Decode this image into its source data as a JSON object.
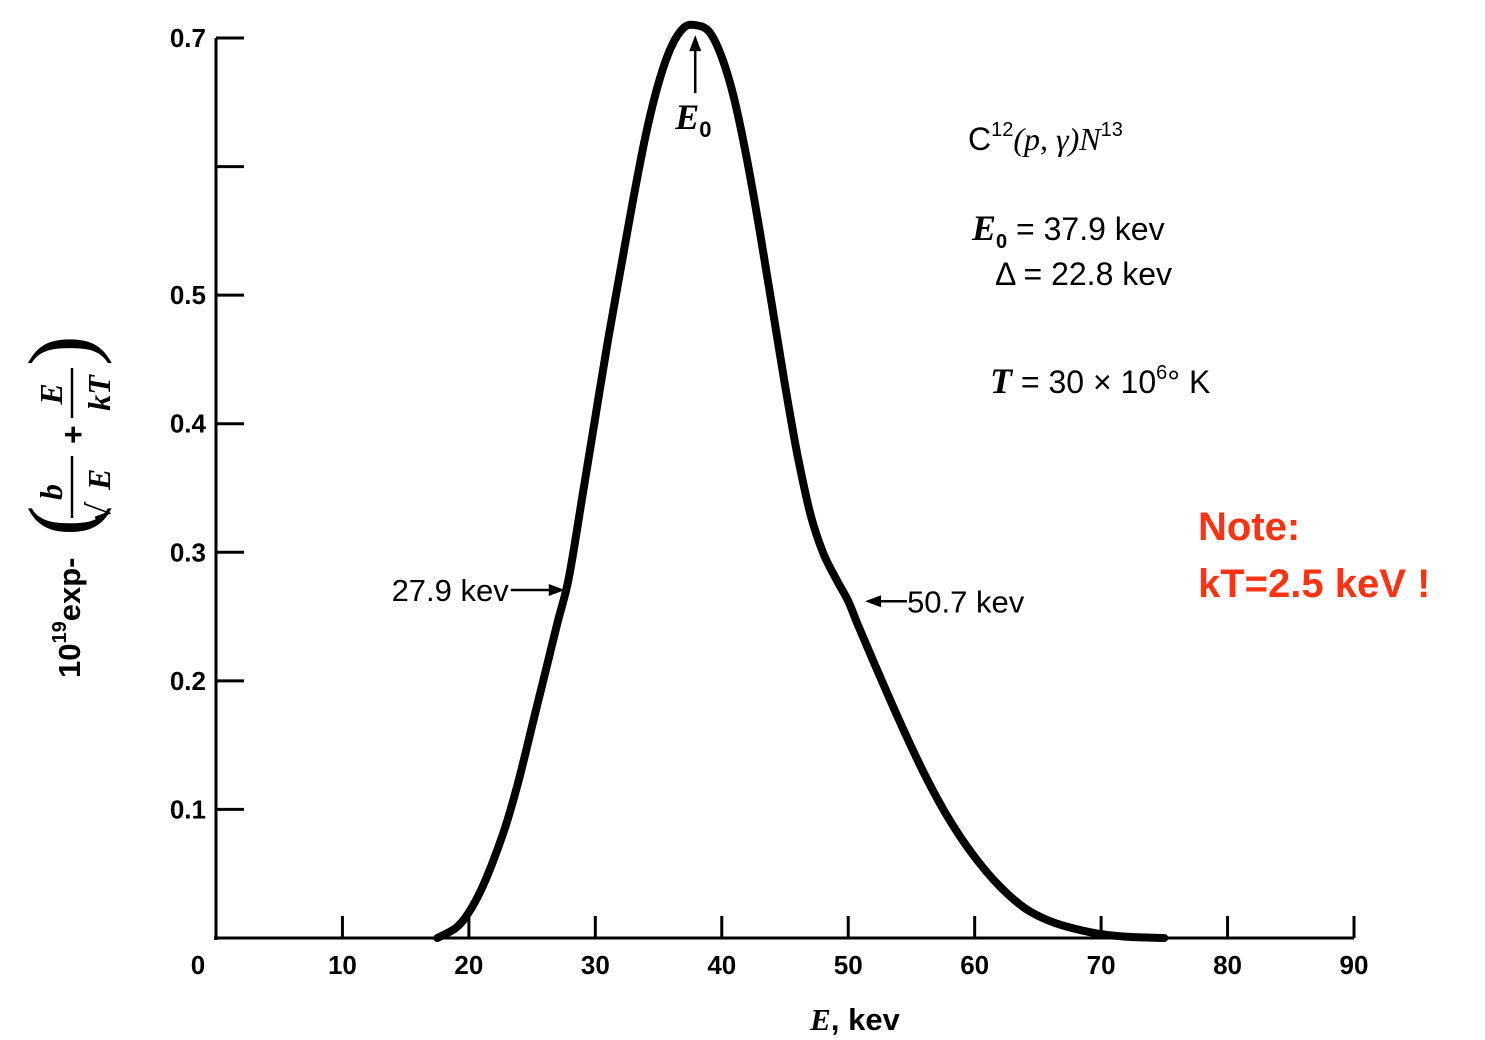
{
  "chart_data": {
    "type": "line",
    "xlabel": {
      "var": "E",
      "unit": ", kev"
    },
    "ylabel": {
      "prefix": "10",
      "exp": "19",
      "func": "exp-",
      "b": "b",
      "root": "√",
      "E1": "E",
      "plus": "+",
      "E2": "E",
      "kT": "kT"
    },
    "xlim": [
      0,
      90
    ],
    "ylim": [
      0,
      0.7
    ],
    "x_ticks": [
      0,
      10,
      20,
      30,
      40,
      50,
      60,
      70,
      80,
      90
    ],
    "x_tick_labels": [
      "0",
      "10",
      "20",
      "30",
      "40",
      "50",
      "60",
      "70",
      "80",
      "90"
    ],
    "y_ticks": [
      0.1,
      0.2,
      0.3,
      0.4,
      0.5,
      0.6,
      0.7
    ],
    "y_tick_labels": [
      "0.1",
      "0.2",
      "0.3",
      "0.4",
      "0.5",
      "",
      "0.7"
    ],
    "series": [
      {
        "x": [
          17.5,
          19,
          20,
          21,
          22,
          23,
          24,
          25,
          26,
          27,
          27.9,
          29,
          30,
          31,
          32,
          33,
          34,
          35,
          36,
          37,
          37.9,
          39,
          40,
          41,
          42,
          43,
          44,
          45,
          46,
          47,
          48,
          49,
          50,
          50.7,
          52,
          54,
          56,
          58,
          60,
          62,
          64,
          66,
          68,
          70,
          72,
          75
        ],
        "y": [
          0.0,
          0.008,
          0.02,
          0.038,
          0.062,
          0.09,
          0.125,
          0.165,
          0.205,
          0.245,
          0.28,
          0.345,
          0.405,
          0.465,
          0.52,
          0.575,
          0.625,
          0.665,
          0.693,
          0.708,
          0.71,
          0.705,
          0.685,
          0.652,
          0.605,
          0.55,
          0.49,
          0.43,
          0.375,
          0.33,
          0.3,
          0.28,
          0.262,
          0.245,
          0.215,
          0.17,
          0.128,
          0.092,
          0.063,
          0.04,
          0.023,
          0.013,
          0.007,
          0.003,
          0.001,
          0.0
        ]
      }
    ],
    "annotations": {
      "peak": {
        "x": 37.9,
        "label_main": "E",
        "label_sub": "0"
      },
      "left": {
        "x": 27.9,
        "y": 0.28,
        "text": "27.9 kev"
      },
      "right": {
        "x": 50.7,
        "y": 0.265,
        "text": "50.7 kev"
      },
      "reaction": {
        "c": "C",
        "c_sup": "12",
        "mid": "(p, γ)N",
        "n_sup": "13"
      },
      "e0": {
        "sym": "E",
        "sub": "0",
        "eq": " = 37.9 kev"
      },
      "delta": {
        "text": "Δ = 22.8 kev"
      },
      "temp": {
        "sym": "T",
        "eq": " = 30 × 10",
        "sup": "6",
        "unit": "° K"
      }
    },
    "note": {
      "line1": "Note:",
      "line2": "kT=2.5 keV !",
      "color": "#ff3311"
    }
  }
}
